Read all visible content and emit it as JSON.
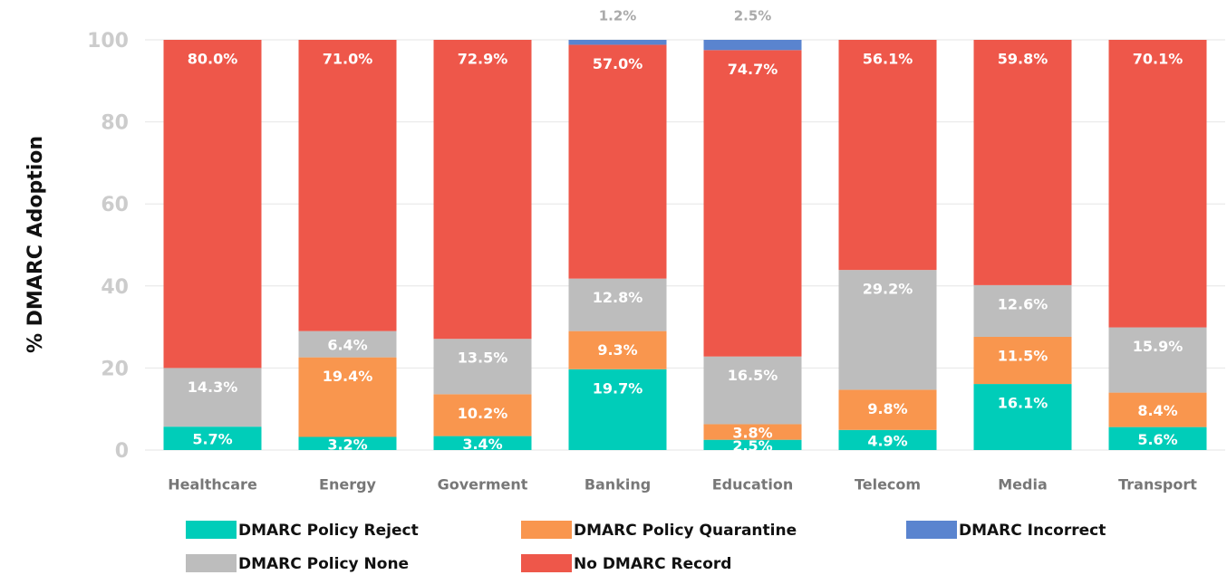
{
  "chart_data": {
    "type": "stacked_bar",
    "y_label": "% DMARC Adoption",
    "categories": [
      "Healthcare",
      "Energy",
      "Goverment",
      "Banking",
      "Education",
      "Telecom",
      "Media",
      "Transport"
    ],
    "series": [
      {
        "name": "DMARC Policy Reject",
        "color": "#00CDB9",
        "values": [
          5.7,
          3.2,
          3.4,
          19.7,
          2.5,
          4.9,
          16.1,
          5.6
        ],
        "value_labels": [
          "5.7%",
          "3.2%",
          "3.4%",
          "19.7%",
          "2.5%",
          "4.9%",
          "16.1%",
          "5.6%"
        ]
      },
      {
        "name": "DMARC Policy Quarantine",
        "color": "#F9964E",
        "values": [
          null,
          19.4,
          10.2,
          9.3,
          3.8,
          9.8,
          11.5,
          8.4
        ],
        "value_labels": [
          null,
          "19.4%",
          "10.2%",
          "9.3%",
          "3.8%",
          "9.8%",
          "11.5%",
          "8.4%"
        ]
      },
      {
        "name": "DMARC Policy None",
        "color": "#BDBDBD",
        "values": [
          14.3,
          6.4,
          13.5,
          12.8,
          16.5,
          29.2,
          12.6,
          15.9
        ],
        "value_labels": [
          "14.3%",
          "6.4%",
          "13.5%",
          "12.8%",
          "16.5%",
          "29.2%",
          "12.6%",
          "15.9%"
        ]
      },
      {
        "name": "No DMARC Record",
        "color": "#EE574A",
        "values": [
          80,
          71,
          72.9,
          57,
          74.7,
          56.1,
          59.8,
          70.1
        ],
        "value_labels": [
          "80.0%",
          "71.0%",
          "72.9%",
          "57.0%",
          "74.7%",
          "56.1%",
          "59.8%",
          "70.1%"
        ]
      },
      {
        "name": "DMARC Incorrect",
        "color": "#5A84CF",
        "values": [
          null,
          null,
          null,
          1.2,
          2.5,
          null,
          null,
          null
        ],
        "value_labels": [
          null,
          null,
          null,
          "1.2%",
          "2.5%",
          null,
          null,
          null
        ]
      }
    ],
    "ylim": [
      0,
      100
    ],
    "yticks": [
      0,
      20,
      40,
      60,
      80,
      100
    ],
    "grid": true
  }
}
